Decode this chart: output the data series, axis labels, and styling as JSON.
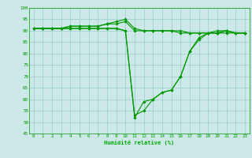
{
  "bg_color": "#cce8e8",
  "grid_color": "#99cccc",
  "line_color": "#009900",
  "marker_color": "#009900",
  "xlabel": "Humidité relative (%)",
  "xlabel_color": "#00aa00",
  "tick_color": "#009900",
  "xlim": [
    -0.5,
    23.5
  ],
  "ylim": [
    45,
    100
  ],
  "yticks": [
    45,
    50,
    55,
    60,
    65,
    70,
    75,
    80,
    85,
    90,
    95,
    100
  ],
  "xticks": [
    0,
    1,
    2,
    3,
    4,
    5,
    6,
    7,
    8,
    9,
    10,
    11,
    12,
    13,
    14,
    15,
    16,
    17,
    18,
    19,
    20,
    21,
    22,
    23
  ],
  "series": [
    [
      91,
      91,
      91,
      91,
      92,
      92,
      92,
      92,
      93,
      94,
      95,
      91,
      90,
      90,
      90,
      90,
      90,
      89,
      89,
      89,
      90,
      90,
      89,
      89
    ],
    [
      91,
      91,
      91,
      91,
      92,
      92,
      92,
      92,
      93,
      93,
      94,
      90,
      90,
      90,
      90,
      90,
      89,
      89,
      89,
      89,
      89,
      89,
      89,
      89
    ],
    [
      91,
      91,
      91,
      91,
      91,
      91,
      91,
      91,
      91,
      91,
      90,
      52,
      59,
      60,
      63,
      64,
      70,
      81,
      87,
      89,
      89,
      90,
      89,
      89
    ],
    [
      91,
      91,
      91,
      91,
      91,
      91,
      91,
      91,
      91,
      91,
      90,
      53,
      55,
      60,
      63,
      64,
      70,
      81,
      86,
      89,
      89,
      90,
      89,
      89
    ]
  ]
}
